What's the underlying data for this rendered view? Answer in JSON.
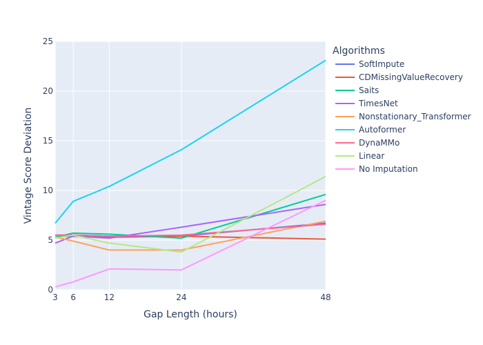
{
  "chart_data": {
    "type": "line",
    "title": "",
    "xlabel": "Gap Length (hours)",
    "ylabel": "Vintage Score Deviation",
    "x": [
      3,
      6,
      12,
      24,
      48
    ],
    "xticks": [
      3,
      6,
      12,
      24,
      48
    ],
    "yticks": [
      0,
      5,
      10,
      15,
      20,
      25
    ],
    "xlim": [
      3,
      48
    ],
    "ylim": [
      0,
      25
    ],
    "grid": true,
    "legend_title": "Algorithms",
    "legend_position": "right",
    "series": [
      {
        "name": "SoftImpute",
        "color": "#636efa",
        "values": [
          5.3,
          5.4,
          5.3,
          5.4,
          6.7
        ]
      },
      {
        "name": "CDMissingValueRecovery",
        "color": "#EF553B",
        "values": [
          5.5,
          5.5,
          5.4,
          5.4,
          5.1
        ]
      },
      {
        "name": "Saits",
        "color": "#00cc96",
        "values": [
          5.3,
          5.7,
          5.6,
          5.2,
          9.6
        ]
      },
      {
        "name": "TimesNet",
        "color": "#ab63fa",
        "values": [
          4.7,
          5.4,
          5.2,
          6.3,
          8.6
        ]
      },
      {
        "name": "Nonstationary_Transformer",
        "color": "#FFA15A",
        "values": [
          5.3,
          4.9,
          4.0,
          4.0,
          6.9
        ]
      },
      {
        "name": "Autoformer",
        "color": "#19d3f3",
        "values": [
          6.7,
          8.9,
          10.4,
          14.1,
          23.1
        ]
      },
      {
        "name": "DynaMMo",
        "color": "#FF6692",
        "values": [
          5.5,
          5.5,
          5.4,
          5.5,
          6.6
        ]
      },
      {
        "name": "Linear",
        "color": "#B6E880",
        "values": [
          5.2,
          5.5,
          4.7,
          3.8,
          11.4
        ]
      },
      {
        "name": "No Imputation",
        "color": "#FF97FF",
        "values": [
          0.3,
          0.8,
          2.1,
          2.0,
          9.0
        ]
      }
    ]
  }
}
